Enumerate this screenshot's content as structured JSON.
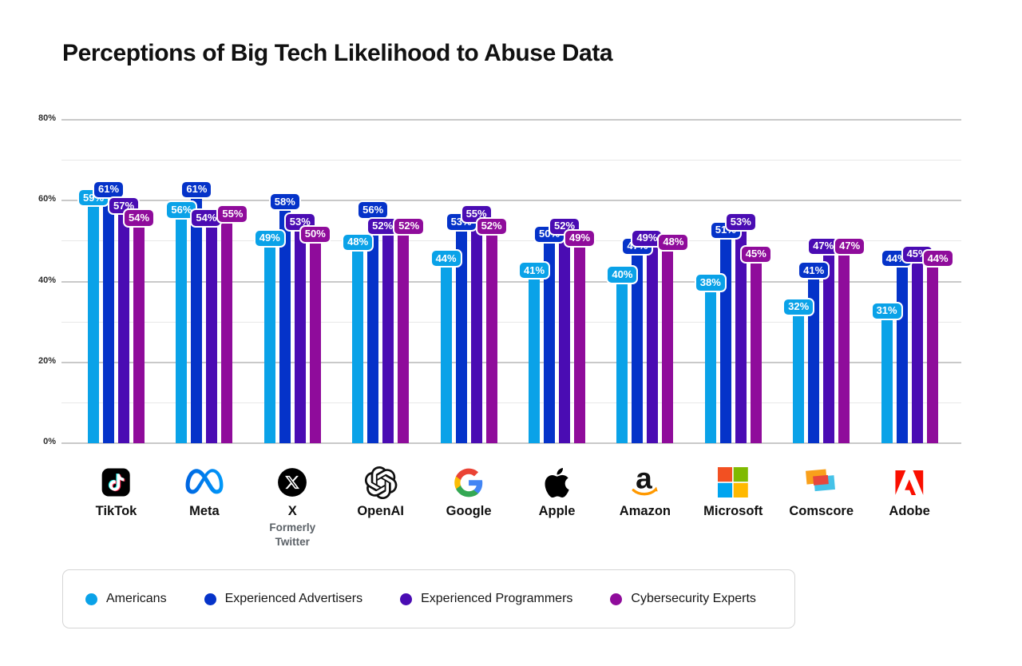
{
  "title": "Perceptions of Big Tech Likelihood to Abuse Data",
  "chart_data": {
    "type": "bar",
    "title": "Perceptions of Big Tech Likelihood to Abuse Data",
    "categories": [
      "TikTok",
      "Meta",
      "X",
      "OpenAI",
      "Google",
      "Apple",
      "Amazon",
      "Microsoft",
      "Comscore",
      "Adobe"
    ],
    "category_sublabels": [
      "",
      "",
      "Formerly Twitter",
      "",
      "",
      "",
      "",
      "",
      "",
      ""
    ],
    "series": [
      {
        "name": "Americans",
        "color": "#0AA2E8",
        "values": [
          59,
          56,
          49,
          48,
          44,
          41,
          40,
          38,
          32,
          31
        ]
      },
      {
        "name": "Experienced Advertisers",
        "color": "#0533C9",
        "values": [
          61,
          61,
          58,
          56,
          53,
          50,
          47,
          51,
          41,
          44
        ]
      },
      {
        "name": "Experienced Programmers",
        "color": "#4A0CB3",
        "values": [
          57,
          54,
          53,
          52,
          55,
          52,
          49,
          53,
          47,
          45
        ]
      },
      {
        "name": "Cybersecurity Experts",
        "color": "#8F0C9B",
        "values": [
          54,
          55,
          50,
          52,
          52,
          49,
          48,
          45,
          47,
          44
        ]
      }
    ],
    "xlabel": "",
    "ylabel": "",
    "ylim": [
      0,
      80
    ],
    "ytick_labels": [
      "0%",
      "20%",
      "40%",
      "60%",
      "80%"
    ],
    "gridlines": "horizontal every 10%, labels every 20%",
    "value_label_format": "{value}%",
    "legend_position": "bottom"
  },
  "companies": [
    {
      "id": "tiktok",
      "label": "TikTok",
      "sublabel": "",
      "icon": "tiktok-logo"
    },
    {
      "id": "meta",
      "label": "Meta",
      "sublabel": "",
      "icon": "meta-logo"
    },
    {
      "id": "x",
      "label": "X",
      "sublabel": "Formerly Twitter",
      "icon": "x-logo"
    },
    {
      "id": "openai",
      "label": "OpenAI",
      "sublabel": "",
      "icon": "openai-logo"
    },
    {
      "id": "google",
      "label": "Google",
      "sublabel": "",
      "icon": "google-logo"
    },
    {
      "id": "apple",
      "label": "Apple",
      "sublabel": "",
      "icon": "apple-logo"
    },
    {
      "id": "amazon",
      "label": "Amazon",
      "sublabel": "",
      "icon": "amazon-logo"
    },
    {
      "id": "microsoft",
      "label": "Microsoft",
      "sublabel": "",
      "icon": "microsoft-logo"
    },
    {
      "id": "comscore",
      "label": "Comscore",
      "sublabel": "",
      "icon": "comscore-logo"
    },
    {
      "id": "adobe",
      "label": "Adobe",
      "sublabel": "",
      "icon": "adobe-logo"
    }
  ],
  "legend": {
    "items": [
      {
        "label": "Americans",
        "color": "#0AA2E8"
      },
      {
        "label": "Experienced Advertisers",
        "color": "#0533C9"
      },
      {
        "label": "Experienced Programmers",
        "color": "#4A0CB3"
      },
      {
        "label": "Cybersecurity Experts",
        "color": "#8F0C9B"
      }
    ]
  },
  "brand_colors": {
    "tiktok_cyan": "#25F4EE",
    "tiktok_red": "#FE2C55",
    "meta_blue_start": "#0064E0",
    "meta_blue_end": "#0099FA",
    "google_blue": "#4285F4",
    "google_green": "#34A853",
    "google_yellow": "#FBBC05",
    "google_red": "#EA4335",
    "amazon_orange": "#FF9900",
    "microsoft_red": "#F25022",
    "microsoft_green": "#7FBA00",
    "microsoft_blue": "#00A4EF",
    "microsoft_yellow": "#FFB900",
    "comscore_orange": "#F9A01B",
    "comscore_red": "#E8473C",
    "comscore_blue": "#45C2E8",
    "adobe_red": "#FA0F00"
  }
}
